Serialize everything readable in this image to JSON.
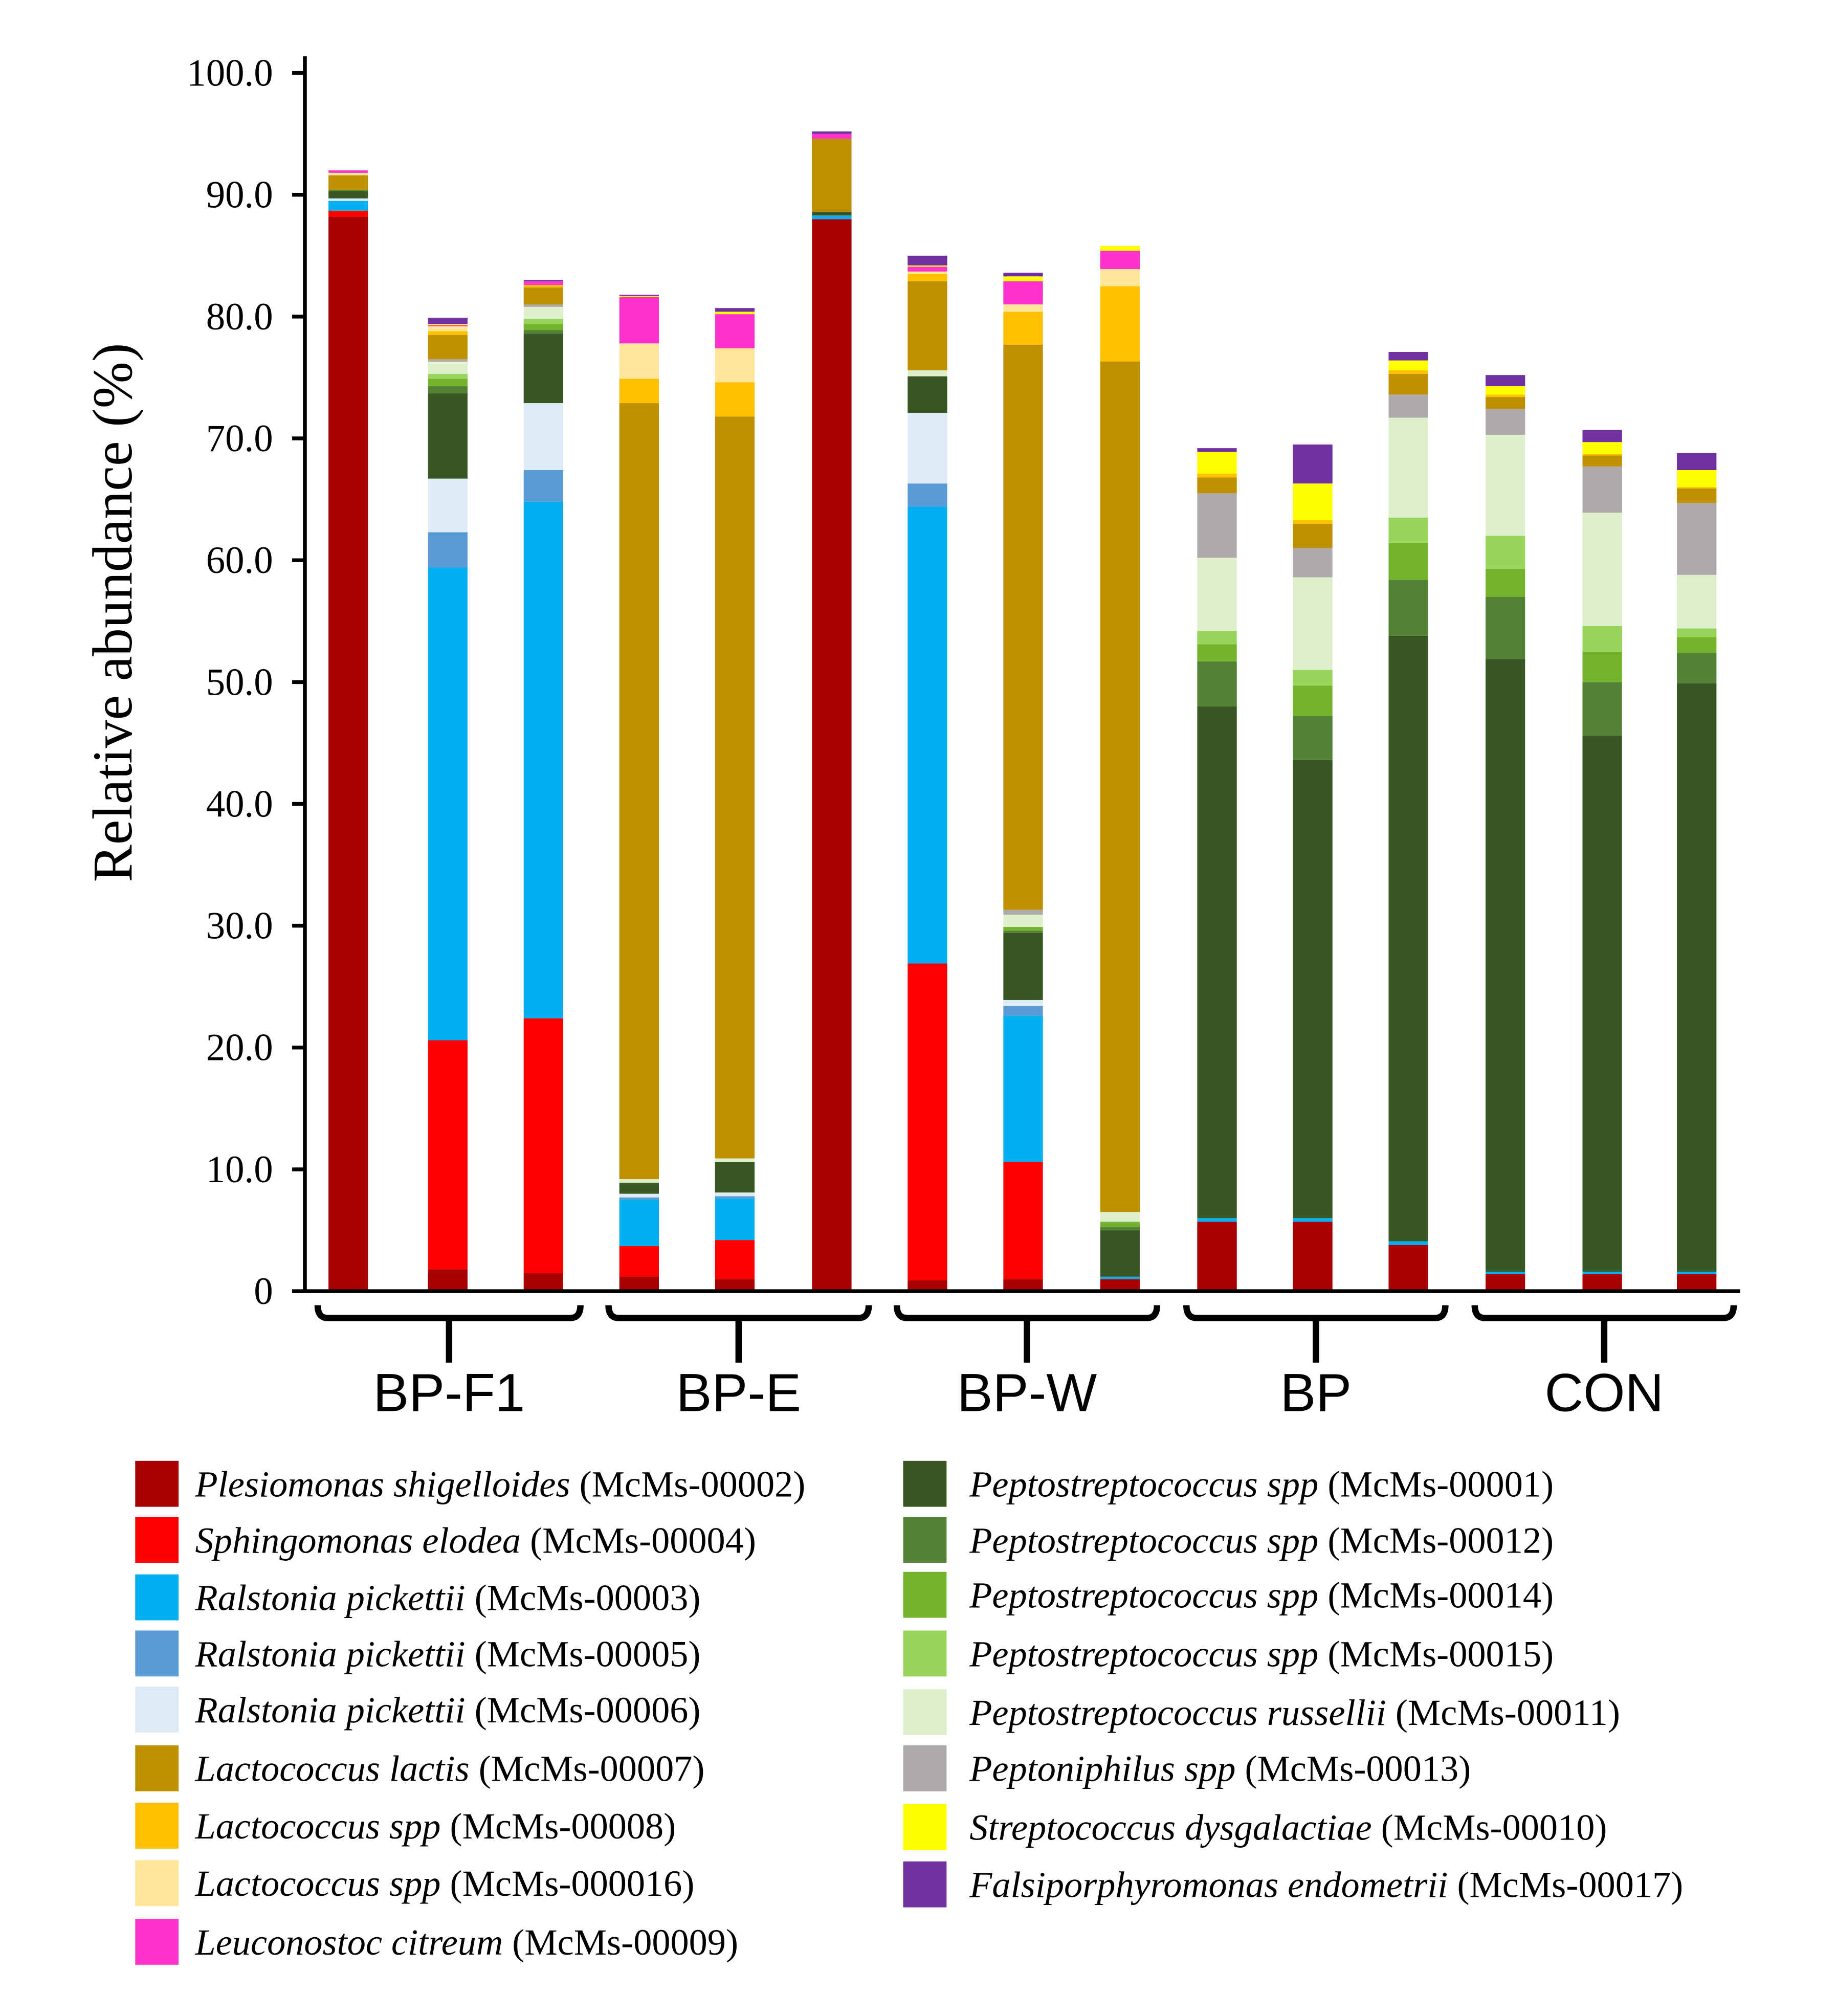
{
  "chart_data": {
    "type": "bar",
    "stacked": true,
    "title": "",
    "xlabel": "",
    "ylabel": "Relative abundance (%)",
    "ylim": [
      0,
      100
    ],
    "yticks": [
      "0",
      "10.0",
      "20.0",
      "30.0",
      "40.0",
      "50.0",
      "60.0",
      "70.0",
      "80.0",
      "90.0",
      "100.0"
    ],
    "ytick_values": [
      0,
      10,
      20,
      30,
      40,
      50,
      60,
      70,
      80,
      90,
      100
    ],
    "grid": false,
    "groups": [
      {
        "label": "BP-F1",
        "bars": 3
      },
      {
        "label": "BP-E",
        "bars": 3
      },
      {
        "label": "BP-W",
        "bars": 3
      },
      {
        "label": "BP",
        "bars": 3
      },
      {
        "label": "CON",
        "bars": 3
      }
    ],
    "legend_position": "bottom",
    "series": [
      {
        "key": "P02",
        "name": "Plesiomonas shigelloides",
        "code": "(McMs-00002)",
        "color": "#A80000",
        "values": [
          88.2,
          1.8,
          1.5,
          1.2,
          1.0,
          88.0,
          0.9,
          1.0,
          1.0,
          5.7,
          5.7,
          3.8,
          1.4,
          1.4,
          1.4
        ]
      },
      {
        "key": "S04",
        "name": "Sphingomonas elodea",
        "code": "(McMs-00004)",
        "color": "#FF0000",
        "values": [
          0.5,
          18.8,
          20.9,
          2.5,
          3.2,
          0,
          26.0,
          9.6,
          0,
          0,
          0,
          0,
          0,
          0,
          0
        ]
      },
      {
        "key": "R03",
        "name": "Ralstonia pickettii",
        "code": "(McMs-00003)",
        "color": "#00B0F0",
        "values": [
          0.8,
          38.8,
          42.4,
          3.8,
          3.4,
          0.3,
          37.5,
          12.0,
          0.2,
          0.3,
          0.3,
          0.3,
          0.2,
          0.2,
          0.2
        ]
      },
      {
        "key": "R05",
        "name": "Ralstonia pickettii",
        "code": "(McMs-00005)",
        "color": "#5B9BD5",
        "values": [
          0,
          2.9,
          2.6,
          0.2,
          0.2,
          0,
          1.9,
          0.8,
          0,
          0,
          0,
          0,
          0,
          0,
          0
        ]
      },
      {
        "key": "R06",
        "name": "Ralstonia pickettii",
        "code": "(McMs-00006)",
        "color": "#DDEBF7",
        "values": [
          0.2,
          4.4,
          5.5,
          0.3,
          0.3,
          0,
          5.8,
          0.5,
          0,
          0,
          0,
          0,
          0,
          0,
          0
        ]
      },
      {
        "key": "P01",
        "name": "Peptostreptococcus spp",
        "code": "(McMs-00001)",
        "color": "#385723",
        "values": [
          0.6,
          7.0,
          5.7,
          0.9,
          2.5,
          0.3,
          3.0,
          5.5,
          3.8,
          42.0,
          37.6,
          49.7,
          50.3,
          44.0,
          48.3
        ]
      },
      {
        "key": "P12",
        "name": "Peptostreptococcus spp",
        "code": "(McMs-00012)",
        "color": "#548235",
        "values": [
          0.1,
          0.6,
          0.3,
          0,
          0,
          0,
          0,
          0.2,
          0.3,
          3.7,
          3.6,
          4.6,
          5.1,
          4.4,
          2.5
        ]
      },
      {
        "key": "P14",
        "name": "Peptostreptococcus spp",
        "code": "(McMs-00014)",
        "color": "#74B42C",
        "values": [
          0,
          0.6,
          0.5,
          0,
          0,
          0,
          0,
          0.3,
          0.4,
          1.4,
          2.5,
          3.0,
          2.3,
          2.5,
          1.3
        ]
      },
      {
        "key": "P15",
        "name": "Peptostreptococcus spp",
        "code": "(McMs-00015)",
        "color": "#98D55A",
        "values": [
          0,
          0.4,
          0.4,
          0,
          0,
          0,
          0,
          0,
          0,
          1.1,
          1.3,
          2.1,
          2.7,
          2.1,
          0.7
        ]
      },
      {
        "key": "P11",
        "name": "Peptostreptococcus russellii",
        "code": "(McMs-00011)",
        "color": "#DDEFCB",
        "values": [
          0,
          1.0,
          1.0,
          0.3,
          0.3,
          0,
          0.5,
          1.0,
          0.8,
          6.0,
          7.6,
          8.2,
          8.3,
          9.3,
          4.4
        ]
      },
      {
        "key": "Pn13",
        "name": "Peptoniphilus spp",
        "code": "(McMs-00013)",
        "color": "#AEAAAA",
        "values": [
          0,
          0.2,
          0.2,
          0,
          0,
          0,
          0,
          0.4,
          0,
          5.3,
          2.4,
          1.9,
          2.1,
          3.8,
          5.9
        ]
      },
      {
        "key": "L07",
        "name": "Lactococcus lactis",
        "code": "(McMs-00007)",
        "color": "#BF9000",
        "values": [
          1.2,
          2.0,
          1.4,
          63.7,
          60.9,
          6.0,
          7.3,
          46.4,
          69.8,
          1.3,
          2.0,
          1.7,
          1.0,
          0.9,
          1.2
        ]
      },
      {
        "key": "L08",
        "name": "Lactococcus spp",
        "code": "(McMs-00008)",
        "color": "#FFC000",
        "values": [
          0,
          0.3,
          0.2,
          2.0,
          2.8,
          0,
          0.6,
          2.7,
          6.2,
          0.3,
          0.3,
          0.3,
          0.2,
          0.1,
          0.1
        ]
      },
      {
        "key": "L16",
        "name": "Lactococcus spp",
        "code": "(McMs-000016)",
        "color": "#FFE699",
        "values": [
          0.2,
          0.4,
          0,
          2.9,
          2.8,
          0,
          0.2,
          0.6,
          1.4,
          0,
          0,
          0,
          0,
          0,
          0
        ]
      },
      {
        "key": "Lc09",
        "name": "Leuconostoc citreum",
        "code": "(McMs-00009)",
        "color": "#FF33CC",
        "values": [
          0.2,
          0.1,
          0.3,
          3.8,
          2.8,
          0.4,
          0.4,
          1.9,
          1.5,
          0,
          0,
          0,
          0,
          0,
          0
        ]
      },
      {
        "key": "S10",
        "name": "Streptococcus dysgalactiae",
        "code": "(McMs-00010)",
        "color": "#FFFF00",
        "values": [
          0,
          0.1,
          0,
          0.1,
          0.2,
          0,
          0.1,
          0.4,
          0.4,
          1.8,
          3.0,
          0.8,
          0.7,
          1.0,
          1.4
        ]
      },
      {
        "key": "F17",
        "name": "Falsiporphyromonas endometrii",
        "code": "(McMs-00017)",
        "color": "#7030A0",
        "values": [
          0,
          0.5,
          0.1,
          0.1,
          0.3,
          0.2,
          0.8,
          0.3,
          0,
          0.3,
          3.2,
          0.7,
          0.9,
          1.0,
          1.4
        ]
      }
    ],
    "legend_columns": [
      [
        "P02",
        "S04",
        "R03",
        "R05",
        "R06",
        "L07",
        "L08",
        "L16",
        "Lc09"
      ],
      [
        "P01",
        "P12",
        "P14",
        "P15",
        "P11",
        "Pn13",
        "S10",
        "F17"
      ]
    ]
  }
}
